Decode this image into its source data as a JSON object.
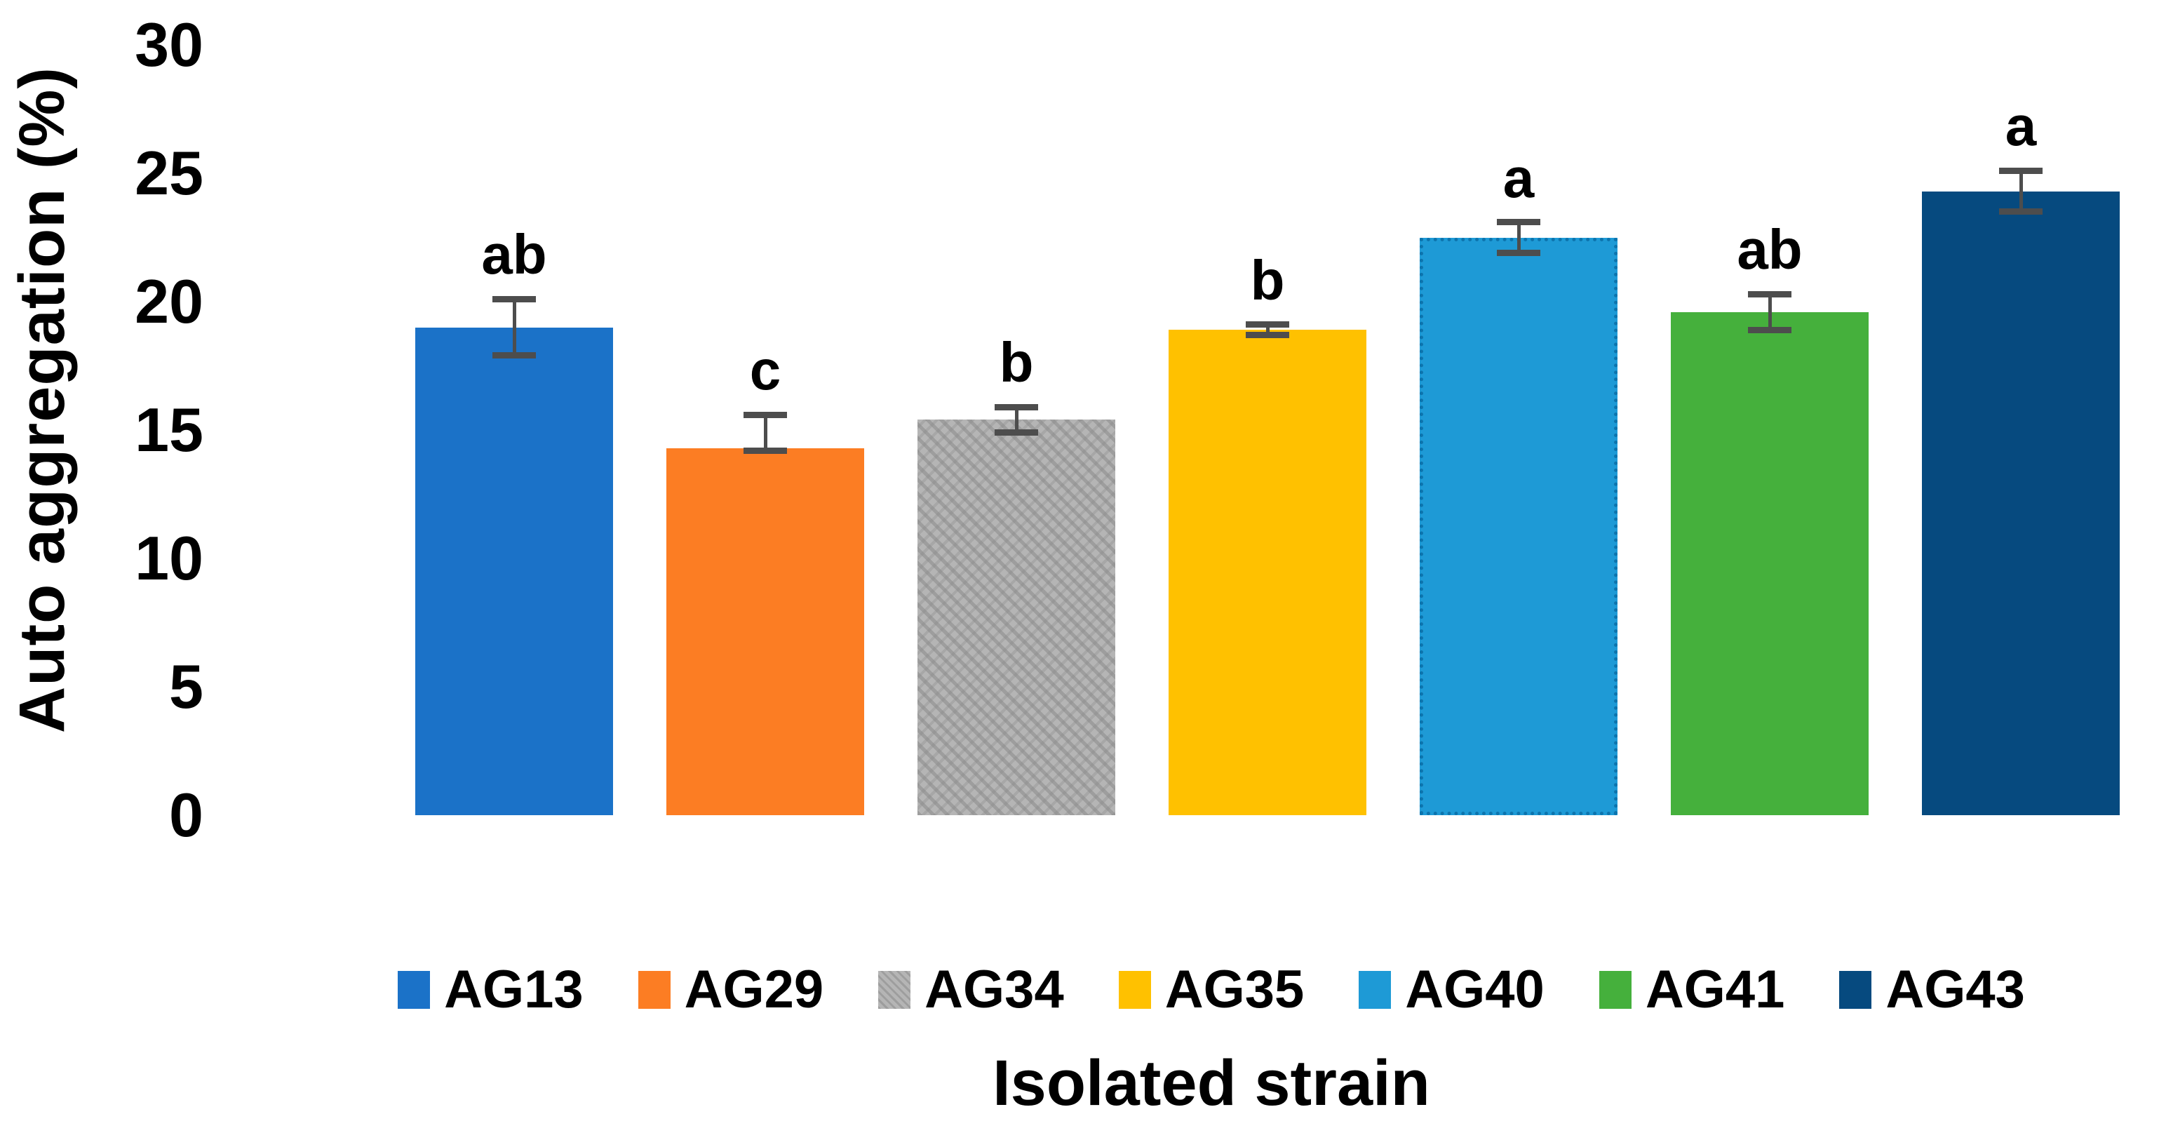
{
  "chart_data": {
    "type": "bar",
    "title": "",
    "xlabel": "Isolated strain",
    "ylabel": "Auto aggregation (%)",
    "ylim": [
      0,
      30
    ],
    "yticks": [
      30,
      25,
      20,
      15,
      10,
      5,
      0
    ],
    "grid": false,
    "legend_position": "bottom",
    "categories": [
      "AG13",
      "AG29",
      "AG34",
      "AG35",
      "AG40",
      "AG41",
      "AG43"
    ],
    "values": [
      19.0,
      14.3,
      15.4,
      18.9,
      22.5,
      19.6,
      24.3
    ],
    "error_plus": [
      1.1,
      1.3,
      0.5,
      0.2,
      0.6,
      0.7,
      0.8
    ],
    "error_minus": [
      1.1,
      0.1,
      0.5,
      0.2,
      0.6,
      0.7,
      0.8
    ],
    "significance_letters": [
      "ab",
      "c",
      "b",
      "b",
      "a",
      "ab",
      "a"
    ],
    "colors": [
      "#1b72c8",
      "#fc7d23",
      "#b5b5b5",
      "#ffc100",
      "#1e9ad6",
      "#45b03c",
      "#064a7f"
    ],
    "bar_styles": {
      "AG34": "textured",
      "AG40": "dotted"
    },
    "error_bar_color": "#4d4d4d",
    "background": "#ffffff"
  }
}
